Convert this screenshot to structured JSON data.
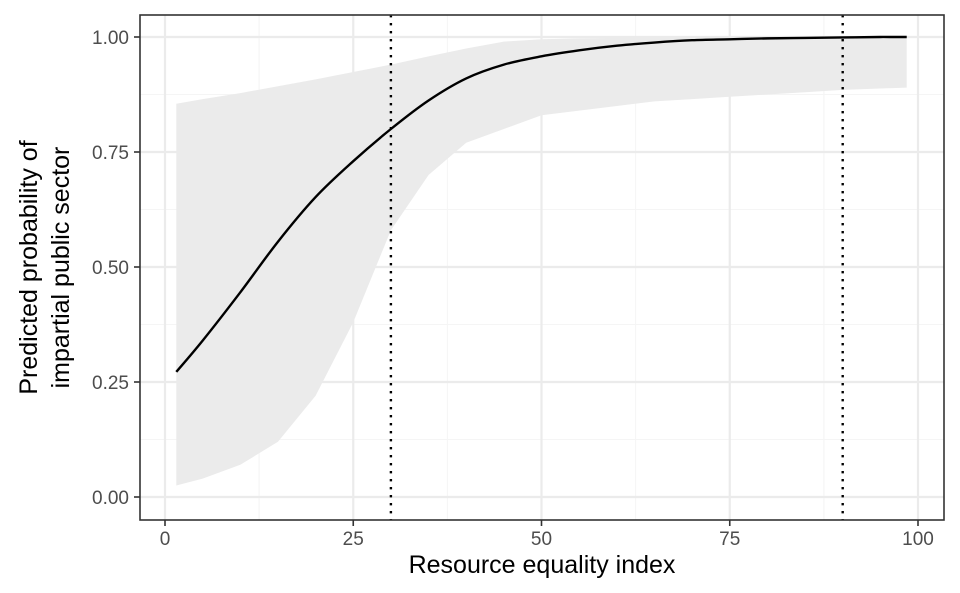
{
  "chart_data": {
    "type": "line",
    "title": "",
    "xlabel": "Resource equality index",
    "ylabel_lines": [
      "Predicted probability of",
      "impartial public sector"
    ],
    "xlim": [
      0,
      100
    ],
    "ylim": [
      0,
      1
    ],
    "x_ticks": [
      0,
      25,
      50,
      75,
      100
    ],
    "x_tick_labels": [
      "0",
      "25",
      "50",
      "75",
      "100"
    ],
    "y_ticks": [
      0,
      0.25,
      0.5,
      0.75,
      1
    ],
    "y_tick_labels": [
      "0.00",
      "0.25",
      "0.50",
      "0.75",
      "1.00"
    ],
    "grid": true,
    "legend": "none",
    "colors": {
      "line": "#000000",
      "ribbon": "#ebebeb",
      "vline": "#000000"
    },
    "series": [
      {
        "x": [
          1.5,
          5,
          10,
          15,
          20,
          25,
          30,
          35,
          40,
          45,
          50,
          55,
          60,
          65,
          70,
          75,
          80,
          85,
          90,
          95,
          98.5
        ],
        "y": [
          0.272,
          0.34,
          0.445,
          0.555,
          0.652,
          0.73,
          0.8,
          0.862,
          0.91,
          0.94,
          0.958,
          0.971,
          0.981,
          0.988,
          0.993,
          0.995,
          0.997,
          0.998,
          0.999,
          1.0,
          1.0
        ],
        "lower": [
          0.025,
          0.04,
          0.07,
          0.12,
          0.22,
          0.38,
          0.58,
          0.7,
          0.77,
          0.8,
          0.83,
          0.84,
          0.85,
          0.86,
          0.865,
          0.87,
          0.875,
          0.88,
          0.885,
          0.888,
          0.89
        ],
        "upper": [
          0.855,
          0.865,
          0.878,
          0.893,
          0.908,
          0.924,
          0.94,
          0.958,
          0.975,
          0.99,
          0.995,
          0.997,
          0.998,
          0.999,
          0.999,
          1.0,
          1.0,
          1.0,
          1.0,
          1.0,
          1.0
        ]
      }
    ],
    "vlines": [
      30,
      90
    ]
  }
}
